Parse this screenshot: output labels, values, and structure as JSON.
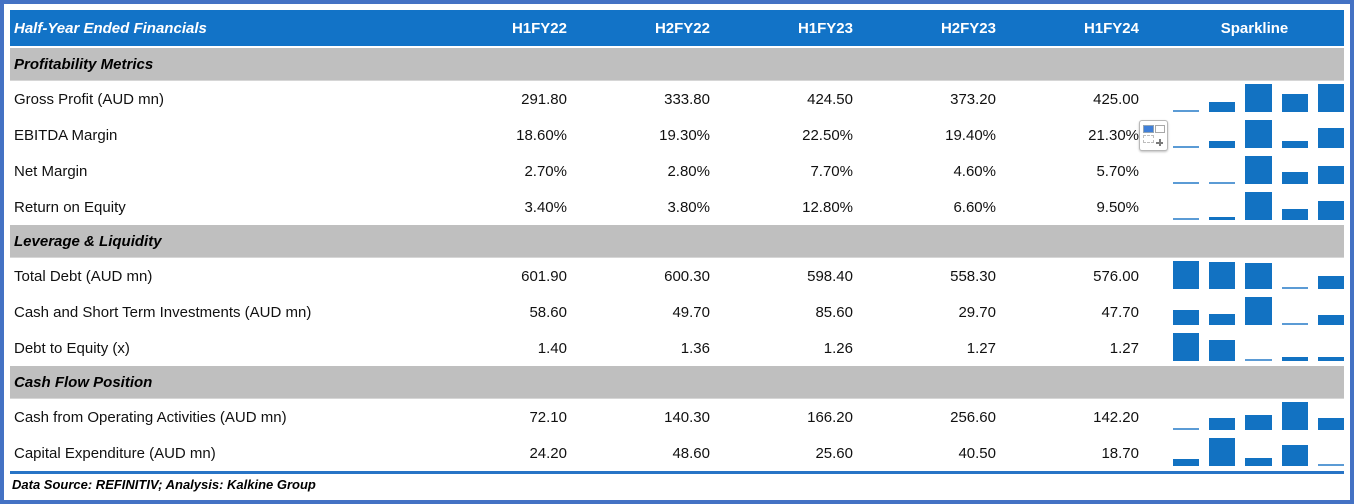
{
  "colors": {
    "header_blue": "#1273C7",
    "bar_blue": "#1272C2",
    "bar_min_blue": "#5B9BD5",
    "section_gray": "#BFBFBF",
    "frame_blue": "#4472C4",
    "rule_blue": "#2874C6"
  },
  "table": {
    "title": "Half-Year Ended Financials",
    "columns": [
      "H1FY22",
      "H2FY22",
      "H1FY23",
      "H2FY23",
      "H1FY24"
    ],
    "sparkline_label": "Sparkline",
    "sections": [
      {
        "label": "Profitability Metrics",
        "rows": [
          {
            "label": "Gross Profit (AUD mn)",
            "values": [
              "291.80",
              "333.80",
              "424.50",
              "373.20",
              "425.00"
            ],
            "numeric": [
              291.8,
              333.8,
              424.5,
              373.2,
              425.0
            ]
          },
          {
            "label": "EBITDA Margin",
            "values": [
              "18.60%",
              "19.30%",
              "22.50%",
              "19.40%",
              "21.30%"
            ],
            "numeric": [
              18.6,
              19.3,
              22.5,
              19.4,
              21.3
            ],
            "quick_analysis_icon": true
          },
          {
            "label": "Net Margin",
            "values": [
              "2.70%",
              "2.80%",
              "7.70%",
              "4.60%",
              "5.70%"
            ],
            "numeric": [
              2.7,
              2.8,
              7.7,
              4.6,
              5.7
            ]
          },
          {
            "label": "Return on Equity",
            "values": [
              "3.40%",
              "3.80%",
              "12.80%",
              "6.60%",
              "9.50%"
            ],
            "numeric": [
              3.4,
              3.8,
              12.8,
              6.6,
              9.5
            ]
          }
        ]
      },
      {
        "label": "Leverage & Liquidity",
        "rows": [
          {
            "label": "Total Debt (AUD mn)",
            "values": [
              "601.90",
              "600.30",
              "598.40",
              "558.30",
              "576.00"
            ],
            "numeric": [
              601.9,
              600.3,
              598.4,
              558.3,
              576.0
            ]
          },
          {
            "label": "Cash and Short Term Investments (AUD mn)",
            "values": [
              "58.60",
              "49.70",
              "85.60",
              "29.70",
              "47.70"
            ],
            "numeric": [
              58.6,
              49.7,
              85.6,
              29.7,
              47.7
            ]
          },
          {
            "label": "Debt to Equity (x)",
            "values": [
              "1.40",
              "1.36",
              "1.26",
              "1.27",
              "1.27"
            ],
            "numeric": [
              1.4,
              1.36,
              1.26,
              1.27,
              1.27
            ]
          }
        ]
      },
      {
        "label": "Cash Flow Position",
        "rows": [
          {
            "label": "Cash from Operating Activities (AUD mn)",
            "values": [
              "72.10",
              "140.30",
              "166.20",
              "256.60",
              "142.20"
            ],
            "numeric": [
              72.1,
              140.3,
              166.2,
              256.6,
              142.2
            ]
          },
          {
            "label": "Capital Expenditure (AUD mn)",
            "values": [
              "24.20",
              "48.60",
              "25.60",
              "40.50",
              "18.70"
            ],
            "numeric": [
              24.2,
              48.6,
              25.6,
              40.5,
              18.7
            ]
          }
        ]
      }
    ]
  },
  "footer": {
    "text": "Data Source: REFINITIV; Analysis: Kalkine Group"
  }
}
